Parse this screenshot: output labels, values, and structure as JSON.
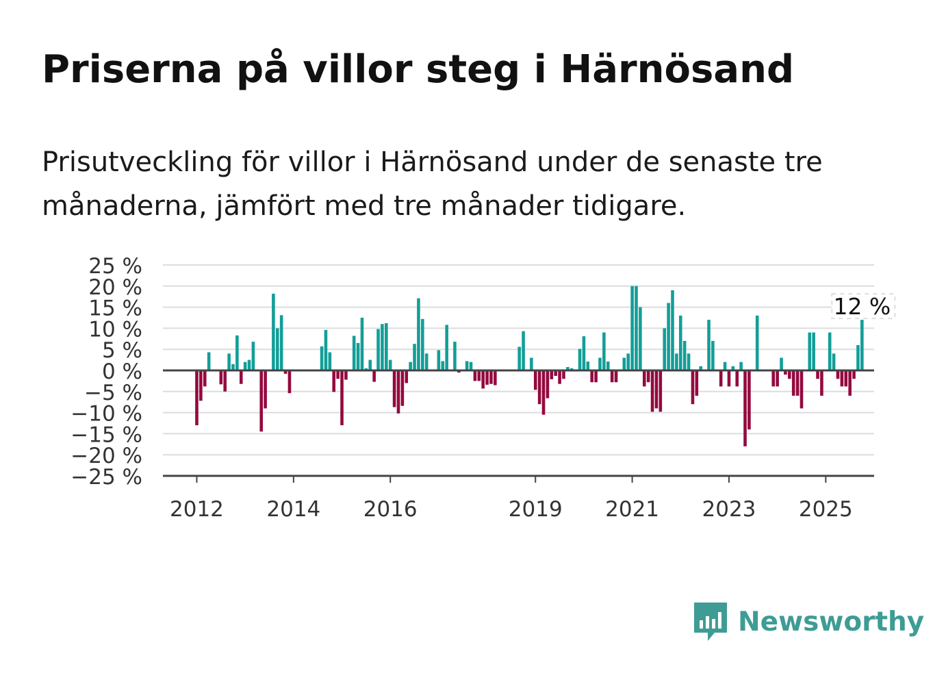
{
  "title": "Priserna på villor steg i Härnösand",
  "subtitle": "Prisutveckling för villor i Härnösand under de senaste tre månaderna, jämfört med tre månader tidigare.",
  "brand": {
    "name": "Newsworthy",
    "color": "#3e9c95",
    "icon": "chart-bubble-icon"
  },
  "chart_data": {
    "type": "bar",
    "x_start": 2012.0,
    "x_step": 0.0833333,
    "xlim": [
      2011.3,
      2026.0
    ],
    "ylim": [
      -25,
      25
    ],
    "y_ticks": [
      25,
      20,
      15,
      10,
      5,
      0,
      -5,
      -10,
      -15,
      -20,
      -25
    ],
    "y_tick_labels": [
      "25 %",
      "20 %",
      "15 %",
      "10 %",
      "5 %",
      "0 %",
      "−5 %",
      "−10 %",
      "−15 %",
      "−20 %",
      "−25 %"
    ],
    "x_ticks": [
      2012,
      2014,
      2016,
      2019,
      2021,
      2023,
      2025
    ],
    "x_tick_labels": [
      "2012",
      "2014",
      "2016",
      "2019",
      "2021",
      "2023",
      "2025"
    ],
    "grid": true,
    "colors": {
      "positive": "#139e98",
      "negative": "#930a3f",
      "grid": "#dddddd",
      "axis": "#444444",
      "text": "#333333"
    },
    "annotation": {
      "text": "12 %",
      "value": 12
    },
    "values": [
      -13,
      -7.2,
      -3.8,
      4.3,
      null,
      null,
      -3.3,
      -5,
      4,
      1.5,
      8.3,
      -3.2,
      2,
      2.5,
      6.8,
      null,
      -14.5,
      -9,
      null,
      18.2,
      10,
      13.1,
      -0.8,
      -5.4,
      null,
      null,
      null,
      null,
      null,
      null,
      null,
      5.7,
      9.6,
      4.3,
      -5.1,
      -2,
      -13,
      -2.2,
      null,
      8.2,
      6.5,
      12.5,
      0.5,
      2.5,
      -2.7,
      9.8,
      11,
      11.2,
      2.5,
      -8.7,
      -10.2,
      -8.4,
      -3,
      2,
      6.3,
      17.1,
      12.2,
      4,
      null,
      null,
      4.8,
      2.2,
      10.8,
      null,
      6.8,
      -0.5,
      null,
      2.2,
      2,
      -2.5,
      -2.5,
      -4.3,
      -3.4,
      -3.2,
      -3.5,
      null,
      null,
      null,
      null,
      null,
      5.6,
      9.3,
      null,
      3,
      -4.6,
      -8,
      -10.5,
      -6.6,
      -2.1,
      -1.3,
      -3.2,
      -2,
      0.8,
      0.5,
      null,
      5.1,
      8.1,
      2.1,
      -2.8,
      -2.8,
      3,
      9,
      2.1,
      -2.8,
      -2.8,
      null,
      3,
      4,
      20,
      20,
      15,
      -3.8,
      -2.8,
      -9.8,
      -9,
      -9.8,
      10,
      16,
      19,
      4,
      13,
      7,
      4,
      -8,
      -6,
      1,
      null,
      12,
      7,
      null,
      -3.8,
      2,
      -3.8,
      1,
      -3.8,
      2,
      -18,
      -14,
      null,
      13,
      null,
      null,
      null,
      -3.8,
      -3.8,
      3,
      -1,
      -2,
      -6,
      -6,
      -9,
      null,
      9,
      9,
      -2,
      -6,
      null,
      9,
      4,
      -2,
      -3.8,
      -3.8,
      -6,
      -2,
      6,
      12
    ]
  }
}
